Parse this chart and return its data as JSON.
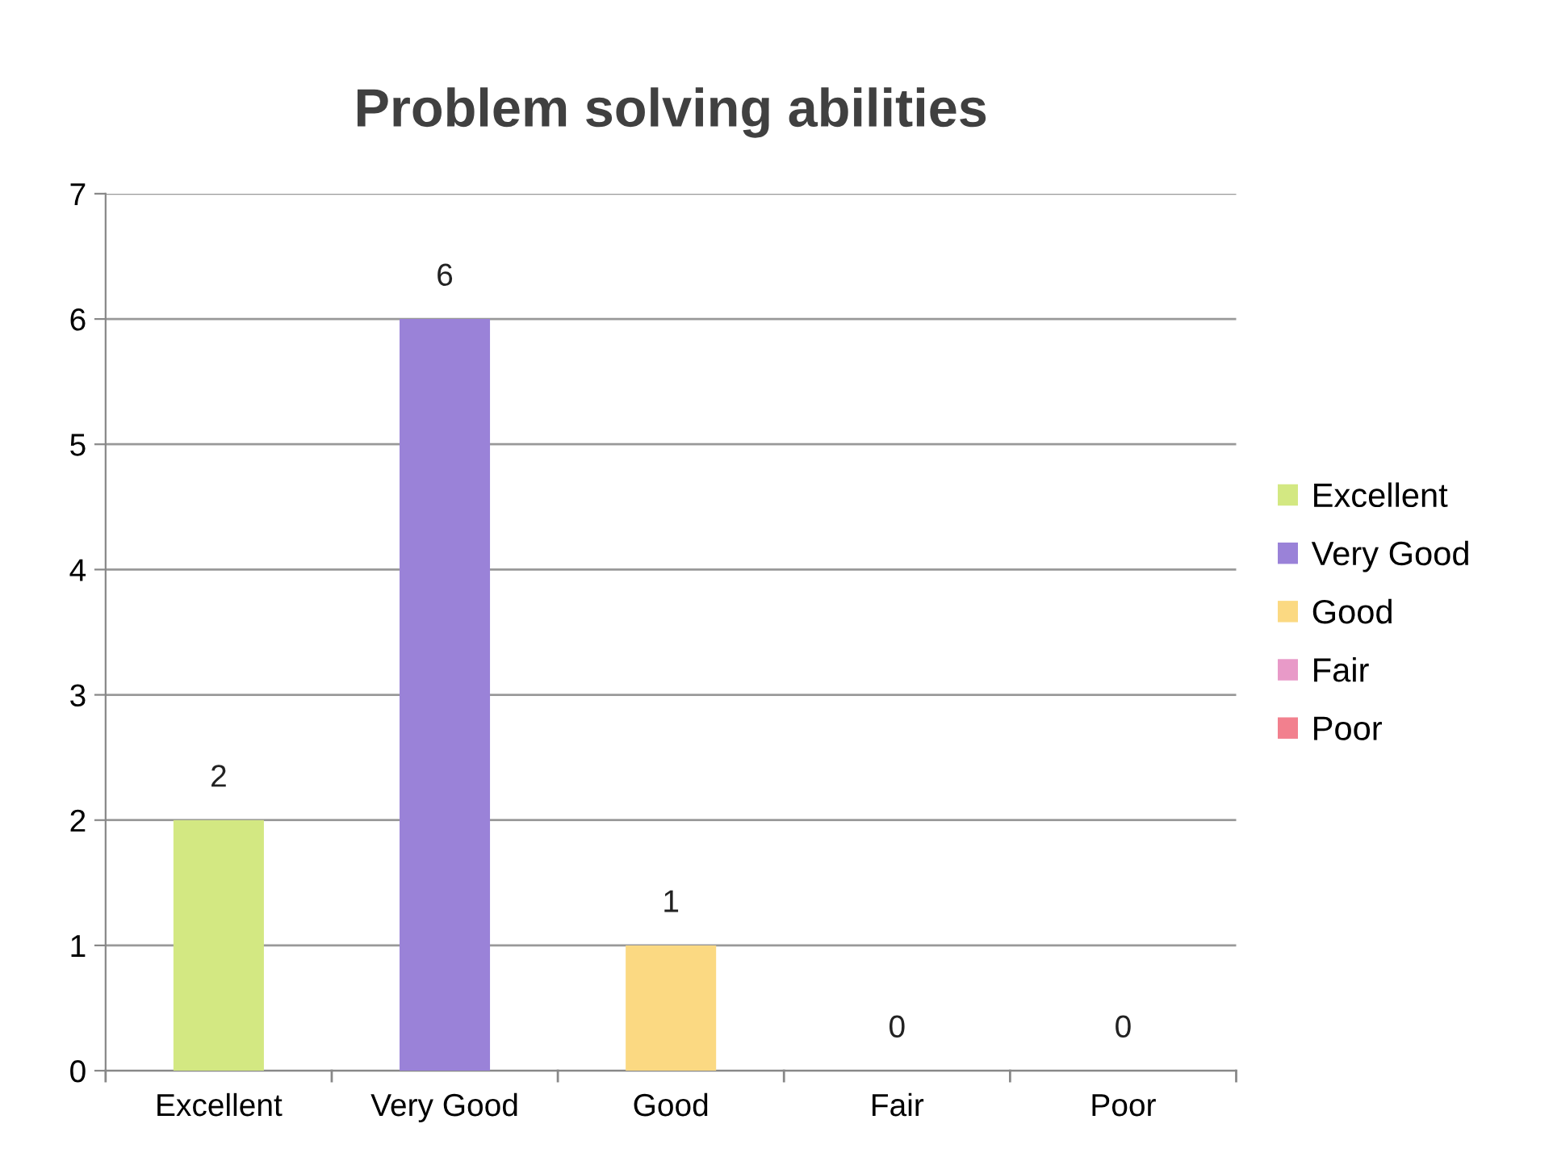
{
  "chart_data": {
    "type": "bar",
    "title": "Problem solving abilities",
    "categories": [
      "Excellent",
      "Very Good",
      "Good",
      "Fair",
      "Poor"
    ],
    "series": [
      {
        "name": "Excellent",
        "color": "#d3e882",
        "values": [
          2,
          null,
          null,
          null,
          null
        ]
      },
      {
        "name": "Very Good",
        "color": "#9a82d8",
        "values": [
          null,
          6,
          null,
          null,
          null
        ]
      },
      {
        "name": "Good",
        "color": "#fbd982",
        "values": [
          null,
          null,
          1,
          null,
          null
        ]
      },
      {
        "name": "Fair",
        "color": "#e89ac8",
        "values": [
          null,
          null,
          null,
          0,
          null
        ]
      },
      {
        "name": "Poor",
        "color": "#f2808e",
        "values": [
          null,
          null,
          null,
          null,
          0
        ]
      }
    ],
    "ylim": [
      0,
      7
    ],
    "yticks": [
      0,
      1,
      2,
      3,
      4,
      5,
      6,
      7
    ],
    "grid": "y",
    "data_labels": true,
    "legend": "right"
  }
}
